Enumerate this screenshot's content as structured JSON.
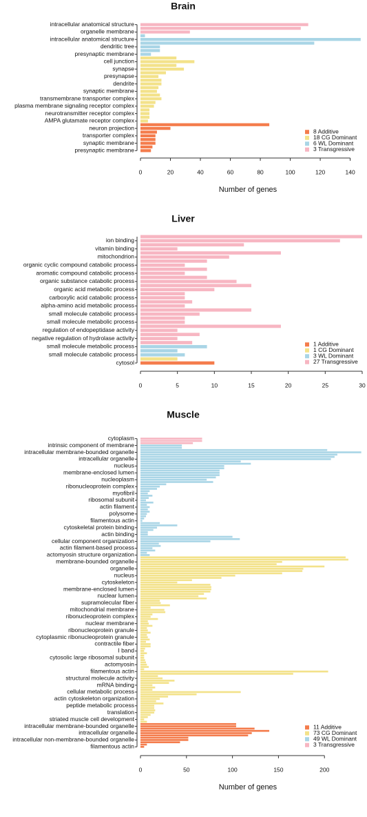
{
  "chart_data": [
    {
      "type": "bar",
      "orientation": "horizontal",
      "title": "Brain",
      "xlabel": "Number of genes",
      "xlim": [
        0,
        148
      ],
      "xticks": [
        0,
        20,
        40,
        60,
        80,
        100,
        120,
        140
      ],
      "legend": "lower right",
      "series": [
        {
          "name": "8 Additive",
          "color": "#f47c4c",
          "categories": [
            null,
            "neuron projection",
            null,
            "transporter complex",
            null,
            "synaptic membrane",
            null,
            "presynaptic membrane"
          ],
          "values": [
            86,
            20,
            11,
            10,
            10,
            10,
            8,
            7
          ]
        },
        {
          "name": "18 CG Dominant",
          "color": "#f3e28a",
          "categories": [
            null,
            "cell junction",
            null,
            "synapse",
            null,
            "presynapse",
            null,
            "dendrite",
            null,
            "synaptic membrane",
            null,
            "transmembrane transporter complex",
            null,
            "plasma membrane signaling receptor complex",
            null,
            "neurotransmitter receptor complex",
            null,
            "AMPA glutamate receptor complex"
          ],
          "values": [
            24,
            36,
            24,
            29,
            17,
            12,
            14,
            14,
            12,
            11,
            13,
            14,
            10,
            9,
            6,
            6,
            6,
            5
          ]
        },
        {
          "name": "6 WL Dominant",
          "color": "#a9d5e6",
          "categories": [
            null,
            "intracellular anatomical structure",
            null,
            "dendritic tree",
            null,
            "presynaptic membrane"
          ],
          "values": [
            3,
            147,
            116,
            13,
            13,
            7
          ]
        },
        {
          "name": "3 Transgressive",
          "color": "#f7b6c2",
          "categories": [
            "intracellular anatomical structure",
            null,
            "organelle membrane"
          ],
          "values": [
            112,
            107,
            33
          ]
        }
      ]
    },
    {
      "type": "bar",
      "orientation": "horizontal",
      "title": "Liver",
      "xlim": [
        0,
        30
      ],
      "xticks": [
        0,
        5,
        10,
        15,
        20,
        25,
        30
      ],
      "legend": "lower right",
      "series": [
        {
          "name": "1 Additive",
          "color": "#f47c4c",
          "categories": [
            "cytosol"
          ],
          "values": [
            10
          ]
        },
        {
          "name": "1 CG Dominant",
          "color": "#f3e28a",
          "categories": [
            null
          ],
          "values": [
            5
          ]
        },
        {
          "name": "3 WL Dominant",
          "color": "#a9d5e6",
          "categories": [
            "small molecule metabolic process",
            null,
            "small molecule catabolic process"
          ],
          "values": [
            9,
            5,
            6
          ]
        },
        {
          "name": "27 Transgressive",
          "color": "#f7b6c2",
          "categories": [
            null,
            "ion binding",
            null,
            "vitamin binding",
            null,
            "mitochondrion",
            null,
            "organic cyclic compound catabolic process",
            null,
            "aromatic compound catabolic process",
            null,
            "organic substance catabolic process",
            null,
            "organic acid metabolic process",
            null,
            "carboxylic acid catabolic process",
            null,
            "alpha-amino acid metabolic process",
            null,
            "small molecule catabolic process",
            null,
            "small molecule metabolic process",
            null,
            "regulation of endopeptidase activity",
            null,
            "negative regulation of hydrolase activity",
            null
          ],
          "values": [
            30,
            27,
            14,
            5,
            19,
            12,
            9,
            6,
            9,
            6,
            9,
            13,
            15,
            10,
            6,
            6,
            7,
            6,
            15,
            8,
            6,
            6,
            19,
            5,
            8,
            5,
            7
          ]
        }
      ]
    },
    {
      "type": "bar",
      "orientation": "horizontal",
      "title": "Muscle",
      "xlabel": "Number of genes",
      "xlim": [
        0,
        241
      ],
      "xticks": [
        0,
        50,
        100,
        150,
        200
      ],
      "legend": "lower right",
      "series": [
        {
          "name": "11 Additive",
          "color": "#f47c4c",
          "categories": [
            null,
            "intracellular membrane-bounded organelle",
            null,
            null,
            "intracellular organelle",
            null,
            null,
            "intracellular non-membrane-bounded organelle",
            null,
            null,
            "filamentous actin"
          ],
          "values": [
            104,
            104,
            124,
            140,
            121,
            117,
            52,
            52,
            43,
            7,
            4
          ]
        },
        {
          "name": "73 CG Dominant",
          "color": "#f3e28a",
          "categories": [
            null,
            null,
            "membrane-bounded organelle",
            null,
            null,
            "organelle",
            null,
            null,
            "nucleus",
            null,
            null,
            "cytoskeleton",
            null,
            null,
            "membrane-enclosed lumen",
            null,
            null,
            "nuclear lumen",
            null,
            null,
            "supramolecular fiber",
            null,
            null,
            "mitochondrial membrane",
            null,
            null,
            "ribonucleoprotein complex",
            null,
            null,
            "nuclear membrane",
            null,
            null,
            "ribonucleoprotein granule",
            null,
            null,
            "cytoplasmic ribonucleoprotein granule",
            null,
            null,
            "contractile fiber",
            null,
            null,
            "I band",
            null,
            null,
            "cytosolic large ribosomal subunit",
            null,
            null,
            "actomyosin",
            null,
            null,
            "filamentous actin",
            null,
            null,
            "structural molecule activity",
            null,
            null,
            "mRNA binding",
            null,
            null,
            "cellular metabolic process",
            null,
            null,
            "actin cytoskeleton organization",
            null,
            null,
            "peptide metabolic process",
            null,
            null,
            "translation",
            null,
            null,
            "striated muscle cell development",
            null
          ],
          "values": [
            223,
            226,
            154,
            148,
            200,
            177,
            176,
            154,
            103,
            88,
            56,
            40,
            76,
            77,
            77,
            76,
            69,
            63,
            72,
            21,
            22,
            32,
            11,
            26,
            27,
            13,
            11,
            19,
            8,
            9,
            13,
            7,
            8,
            11,
            7,
            8,
            10,
            6,
            11,
            11,
            5,
            4,
            7,
            4,
            4,
            5,
            6,
            7,
            9,
            4,
            204,
            166,
            19,
            24,
            37,
            31,
            13,
            16,
            13,
            109,
            61,
            30,
            21,
            17,
            25,
            15,
            15,
            16,
            15,
            11,
            8,
            4,
            7
          ]
        },
        {
          "name": "49 WL Dominant",
          "color": "#a9d5e6",
          "categories": [
            "intrinsic component of membrane",
            null,
            null,
            "intracellular membrane-bounded organelle",
            null,
            null,
            "intracellular organelle",
            null,
            null,
            "nucleus",
            null,
            null,
            "membrane-enclosed lumen",
            null,
            null,
            "nucleoplasm",
            null,
            null,
            "ribonucleoprotein complex",
            null,
            null,
            "myofibril",
            null,
            null,
            "ribosomal subunit",
            null,
            null,
            "actin filament",
            null,
            null,
            "polysome",
            null,
            null,
            "filamentous actin",
            null,
            null,
            "cytoskeletal protein binding",
            null,
            null,
            "actin binding",
            null,
            null,
            "cellular component organization",
            null,
            null,
            "actin filament-based process",
            null,
            null,
            "actomyosin structure organization"
          ],
          "values": [
            45,
            45,
            203,
            240,
            214,
            211,
            207,
            109,
            120,
            91,
            91,
            86,
            86,
            86,
            82,
            72,
            79,
            28,
            21,
            18,
            10,
            8,
            13,
            9,
            6,
            14,
            7,
            10,
            8,
            10,
            7,
            6,
            4,
            2,
            21,
            40,
            18,
            14,
            8,
            8,
            100,
            108,
            76,
            20,
            22,
            13,
            16,
            7,
            10
          ]
        },
        {
          "name": "3 Transgressive",
          "color": "#f7b6c2",
          "categories": [
            "cytoplasm",
            null,
            null
          ],
          "values": [
            67,
            67,
            57
          ]
        }
      ]
    }
  ]
}
